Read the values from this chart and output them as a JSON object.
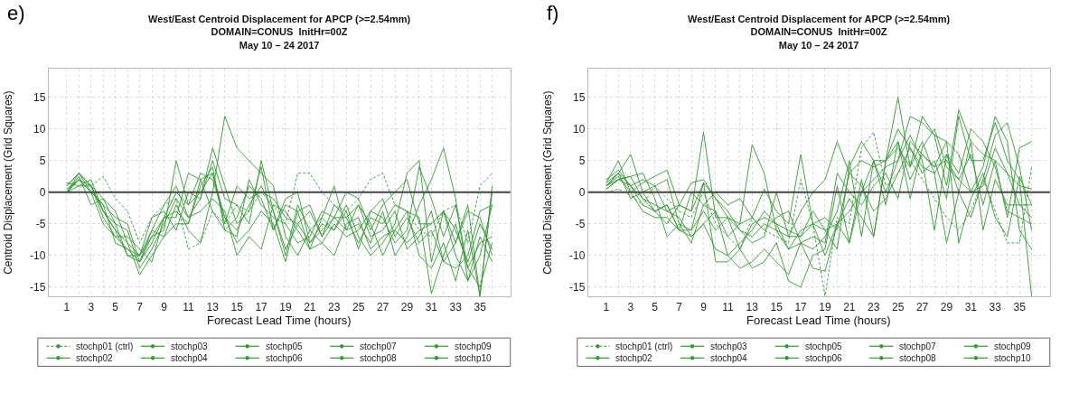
{
  "chart_data": [
    {
      "type": "line",
      "title": "West/East Centroid Displacement for APCP (>=2.54mm)\nDOMAIN=CONUS  InitHr=00Z\nMay 10 – 24 2017",
      "xlabel": "Forecast Lead Time (hours)",
      "ylabel": "Centroid Displacement (Grid Squares)",
      "annotations": [
        "e)"
      ],
      "x": [
        1,
        2,
        3,
        4,
        5,
        6,
        7,
        8,
        9,
        10,
        11,
        12,
        13,
        14,
        15,
        16,
        17,
        18,
        19,
        20,
        21,
        22,
        23,
        24,
        25,
        26,
        27,
        28,
        29,
        30,
        31,
        32,
        33,
        34,
        35,
        36
      ],
      "xlim": [
        -0.5,
        37.5
      ],
      "ylim": [
        -16.5,
        19.5
      ],
      "xticks": [
        1,
        {
          "value": 2,
          "label": null
        },
        3,
        {
          "value": 4,
          "label": null
        },
        5,
        {
          "value": 6,
          "label": null
        },
        7,
        {
          "value": 8,
          "label": null
        },
        9,
        {
          "value": 10,
          "label": null
        },
        11,
        {
          "value": 12,
          "label": null
        },
        13,
        {
          "value": 14,
          "label": null
        },
        15,
        {
          "value": 16,
          "label": null
        },
        17,
        {
          "value": 18,
          "label": null
        },
        19,
        {
          "value": 20,
          "label": null
        },
        21,
        {
          "value": 22,
          "label": null
        },
        23,
        {
          "value": 24,
          "label": null
        },
        25,
        {
          "value": 26,
          "label": null
        },
        27,
        {
          "value": 28,
          "label": null
        },
        29,
        {
          "value": 30,
          "label": null
        },
        31,
        {
          "value": 32,
          "label": null
        },
        33,
        {
          "value": 34,
          "label": null
        },
        35,
        {
          "value": 36,
          "label": null
        }
      ],
      "yticks": [
        -15,
        -10,
        -5,
        0,
        5,
        10,
        15
      ],
      "grid": true,
      "legend": "bottom",
      "marker": "none",
      "ref_lines": [
        {
          "axis": "y",
          "value": 0,
          "label": null,
          "color": "#444444"
        }
      ],
      "series": [
        {
          "name": "stochp01 (ctrl)",
          "color": "#339933",
          "line_style": "dashed",
          "values": [
            0,
            2,
            1,
            2.5,
            -1,
            -3,
            -8,
            -4,
            -2,
            -1,
            -9,
            -8,
            -3,
            -5,
            -2,
            -3,
            0,
            -2,
            -5,
            3,
            3,
            0,
            -2,
            -3,
            -1,
            2,
            3,
            -2,
            -3,
            -6,
            -7,
            -3,
            -2,
            -8,
            1,
            3
          ]
        },
        {
          "name": "stochp02",
          "color": "#339933",
          "values": [
            1,
            3,
            1,
            -3,
            -6,
            -8,
            -10,
            -7,
            -4,
            -3,
            -5,
            2,
            3,
            -4,
            -6,
            -2,
            1,
            -3,
            -9,
            -5,
            -3,
            -7,
            -4,
            -6,
            -2,
            -5,
            -10,
            -6,
            -3,
            -4,
            -16,
            -10,
            -5,
            -12,
            -15,
            -8
          ]
        },
        {
          "name": "stochp03",
          "color": "#339933",
          "values": [
            0,
            2,
            0,
            -5,
            -7,
            -9,
            -11,
            -6,
            -2,
            1,
            -4,
            -1,
            7,
            1,
            -5,
            -3,
            4,
            -6,
            -1,
            0,
            -8,
            -5,
            -6,
            -3,
            -9,
            -3,
            -1,
            -7,
            -4,
            -8,
            -6,
            -11,
            -8,
            -2,
            -16.4,
            1
          ]
        },
        {
          "name": "stochp04",
          "color": "#339933",
          "values": [
            1,
            3,
            0,
            -2,
            -4,
            -5,
            -11,
            -8,
            -4,
            0,
            -2,
            3,
            2,
            -4,
            -8,
            -6,
            -3,
            -5,
            -11,
            -3,
            -9,
            -4,
            1,
            -6,
            -5,
            -8,
            -3,
            -10,
            -7,
            -2,
            2,
            7,
            -1,
            -14,
            -10,
            -2
          ]
        },
        {
          "name": "stochp05",
          "color": "#339933",
          "values": [
            0,
            1,
            1,
            -1,
            -3,
            -8,
            -13,
            -10,
            -7,
            -2,
            -6,
            -8,
            0,
            12,
            7,
            5,
            3,
            1,
            -7,
            -10,
            -6,
            -4,
            -6,
            -2,
            -7,
            -10,
            -8,
            -5,
            3,
            5,
            -11,
            -3,
            -6,
            -11,
            -5,
            -9
          ]
        },
        {
          "name": "stochp06",
          "color": "#339933",
          "values": [
            1.5,
            1,
            2,
            -3,
            -6,
            -10,
            -11,
            -7,
            -6,
            5,
            -2,
            0,
            3,
            -5,
            1,
            -1,
            0,
            -1,
            -4,
            -5,
            -8,
            -6,
            -4,
            0,
            -1,
            -6,
            -2,
            0,
            2,
            -5,
            -5,
            -3,
            -8,
            -3,
            -4,
            -10
          ]
        },
        {
          "name": "stochp07",
          "color": "#339933",
          "values": [
            0,
            2,
            0,
            -2,
            -8,
            -9,
            -10,
            -6,
            -7,
            -5,
            -5,
            1,
            4,
            -6,
            -7,
            2,
            -2,
            -4,
            -5,
            -8,
            -7,
            -3,
            -4,
            -4,
            -2,
            -7,
            -6,
            -3,
            -9,
            -7,
            -3,
            -11,
            -12,
            -10,
            -3,
            -2
          ]
        },
        {
          "name": "stochp08",
          "color": "#339933",
          "values": [
            0,
            3,
            1,
            -3,
            -5,
            -10,
            -10,
            -4,
            -3,
            -6,
            0,
            -1,
            5,
            -1,
            -2,
            -5,
            5,
            -3,
            -10,
            -2,
            -6,
            -8,
            -5,
            -7,
            -6,
            -3,
            -4,
            -8,
            -6,
            4,
            -1,
            -7,
            -2,
            -12,
            -8,
            -7
          ]
        },
        {
          "name": "stochp09",
          "color": "#339933",
          "values": [
            0.5,
            2,
            1,
            -4,
            -7,
            -7,
            -9,
            -11,
            -4,
            -4,
            3,
            2,
            -3,
            -6,
            -4,
            1,
            -1,
            -6,
            -2,
            -3,
            -2,
            -7,
            -2,
            -4,
            -8,
            -4,
            -5,
            -2,
            -3,
            -10,
            -12,
            -8,
            -14,
            -6,
            -16.4,
            0
          ]
        },
        {
          "name": "stochp10",
          "color": "#339933",
          "values": [
            0,
            2.5,
            -2,
            -1,
            -5,
            -6,
            -12,
            -9,
            -5,
            -1,
            -4,
            -3,
            -1,
            -3,
            -10,
            -7,
            -9,
            -2,
            -3,
            -6,
            -9,
            -8,
            -10,
            -5,
            -4,
            -9,
            -7,
            -6,
            -8,
            -6,
            -5,
            -3,
            -10,
            -14,
            -7,
            -11
          ]
        }
      ]
    },
    {
      "type": "line",
      "title": "West/East Centroid Displacement for APCP (>=2.54mm)\nDOMAIN=CONUS  InitHr=00Z\nMay 10 – 24 2017",
      "xlabel": "Forecast Lead Time (hours)",
      "ylabel": "Centroid Displacement (Grid Squares)",
      "annotations": [
        "f)"
      ],
      "x": [
        1,
        2,
        3,
        4,
        5,
        6,
        7,
        8,
        9,
        10,
        11,
        12,
        13,
        14,
        15,
        16,
        17,
        18,
        19,
        20,
        21,
        22,
        23,
        24,
        25,
        26,
        27,
        28,
        29,
        30,
        31,
        32,
        33,
        34,
        35,
        36
      ],
      "xlim": [
        -0.5,
        37.5
      ],
      "ylim": [
        -16.5,
        19.5
      ],
      "xticks": [
        1,
        {
          "value": 2,
          "label": null
        },
        3,
        {
          "value": 4,
          "label": null
        },
        5,
        {
          "value": 6,
          "label": null
        },
        7,
        {
          "value": 8,
          "label": null
        },
        9,
        {
          "value": 10,
          "label": null
        },
        11,
        {
          "value": 12,
          "label": null
        },
        13,
        {
          "value": 14,
          "label": null
        },
        15,
        {
          "value": 16,
          "label": null
        },
        17,
        {
          "value": 18,
          "label": null
        },
        19,
        {
          "value": 20,
          "label": null
        },
        21,
        {
          "value": 22,
          "label": null
        },
        23,
        {
          "value": 24,
          "label": null
        },
        25,
        {
          "value": 26,
          "label": null
        },
        27,
        {
          "value": 28,
          "label": null
        },
        29,
        {
          "value": 30,
          "label": null
        },
        31,
        {
          "value": 32,
          "label": null
        },
        33,
        {
          "value": 34,
          "label": null
        },
        35,
        {
          "value": 36,
          "label": null
        }
      ],
      "yticks": [
        -15,
        -10,
        -5,
        0,
        5,
        10,
        15
      ],
      "grid": true,
      "legend": "bottom",
      "marker": "none",
      "ref_lines": [
        {
          "axis": "y",
          "value": 0,
          "label": null,
          "color": "#444444"
        }
      ],
      "series": [
        {
          "name": "stochp01 (ctrl)",
          "color": "#339933",
          "line_style": "dashed",
          "values": [
            0,
            0.5,
            -0.5,
            -2,
            1,
            -1,
            -3,
            -4,
            0,
            -5,
            -7,
            -9,
            -4,
            -6,
            -7,
            -8,
            2,
            -5,
            -16.4,
            -4,
            -5,
            7,
            9.5,
            1,
            3,
            5,
            2,
            -1,
            -4,
            -6,
            -3,
            2,
            -3,
            -8,
            -8,
            4
          ]
        },
        {
          "name": "stochp02",
          "color": "#339933",
          "values": [
            1.5,
            5,
            0,
            1.5,
            2.5,
            3.5,
            -2,
            -3,
            1.5,
            -11,
            -11,
            -9,
            -5,
            -4,
            -5,
            -9,
            -8,
            -12,
            -12.5,
            -5,
            -3,
            0,
            2,
            4,
            5,
            12,
            11,
            9,
            8,
            6,
            0,
            1,
            7,
            3,
            -2,
            -4
          ]
        },
        {
          "name": "stochp03",
          "color": "#339933",
          "values": [
            1,
            3,
            6,
            0,
            1,
            2,
            -5,
            -8,
            -2,
            -3,
            -10,
            -8,
            -6,
            -3,
            -5,
            -6,
            -7,
            -5,
            -4,
            -6,
            3,
            5,
            4,
            5,
            15,
            4,
            8,
            3,
            6,
            0,
            -4,
            2,
            9,
            11,
            4,
            -6
          ]
        },
        {
          "name": "stochp04",
          "color": "#339933",
          "values": [
            2,
            3.5,
            1,
            2,
            1,
            -3,
            -2,
            -3,
            9.5,
            -4,
            -4,
            -9,
            -12,
            -11,
            -8,
            -14,
            -15,
            -10,
            -9,
            1,
            -8,
            2,
            -7,
            5,
            8,
            -1,
            7,
            10,
            4,
            2,
            6,
            -2,
            5,
            3,
            1,
            0.5
          ]
        },
        {
          "name": "stochp05",
          "color": "#339933",
          "values": [
            1,
            2,
            2.5,
            3,
            -1,
            -7,
            -5,
            -6,
            -3,
            -6,
            -4,
            -5,
            7.5,
            3,
            -6,
            -9,
            -6,
            -5,
            -6,
            -9,
            4,
            8,
            5,
            5,
            7,
            4,
            12,
            9,
            1,
            13,
            8,
            6,
            5,
            -4,
            7,
            8
          ]
        },
        {
          "name": "stochp06",
          "color": "#339933",
          "values": [
            1.5,
            3,
            1,
            -1,
            -2,
            -3,
            -4,
            -7,
            -5,
            -3,
            -7,
            -5,
            -4,
            -6,
            -4,
            -3,
            -8,
            -7,
            -8,
            3,
            0,
            -2,
            1,
            3,
            -1,
            8,
            6,
            4,
            5,
            2,
            0,
            4,
            12,
            8,
            -6,
            -9
          ]
        },
        {
          "name": "stochp07",
          "color": "#339933",
          "values": [
            1,
            2.5,
            0,
            -3,
            -4,
            -4,
            -6,
            -7,
            -5,
            -9,
            -10,
            -12,
            -11,
            -9,
            -11,
            -13,
            -8,
            -9,
            -7,
            -3,
            5,
            -7,
            5,
            0,
            5,
            9,
            5,
            -6,
            6,
            3,
            10,
            8,
            4,
            -3,
            -4,
            -5
          ]
        },
        {
          "name": "stochp08",
          "color": "#339933",
          "values": [
            0.5,
            2,
            1,
            -2,
            -3,
            -5,
            -2,
            1.5,
            2,
            -1,
            -3,
            -6,
            -7,
            -5,
            -6,
            -7,
            -3,
            0,
            2,
            8,
            3,
            1,
            -3,
            -1,
            3,
            7,
            4,
            3,
            -8,
            0,
            8,
            -6,
            2,
            -2,
            -2,
            -2
          ]
        },
        {
          "name": "stochp09",
          "color": "#339933",
          "values": [
            1,
            3,
            -1,
            0,
            -3,
            -2,
            -6,
            0,
            -2,
            0,
            -2,
            -1,
            -4,
            0.5,
            -3,
            -5,
            6,
            -5,
            -10,
            -5,
            -8,
            0,
            5,
            -2,
            8,
            2,
            6,
            4,
            8,
            -8,
            -1,
            3,
            -4,
            -7,
            2.5,
            -2
          ]
        },
        {
          "name": "stochp10",
          "color": "#339933",
          "values": [
            0.5,
            2,
            2.5,
            -1,
            -3,
            -2,
            -6,
            -6,
            1.5,
            -1,
            -4,
            -6,
            -8,
            -7,
            0,
            -7,
            -7,
            -3,
            -6,
            -5,
            -1,
            -4,
            -7,
            5,
            10,
            7,
            3,
            5,
            -1,
            12,
            5,
            5,
            11,
            5,
            2,
            -16.4
          ]
        }
      ]
    }
  ]
}
